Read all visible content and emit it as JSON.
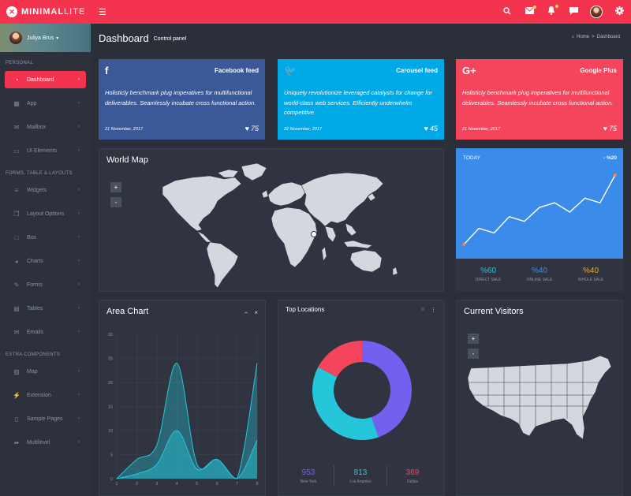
{
  "brand": {
    "bold": "MINIMAL",
    "light": "LITE"
  },
  "user": {
    "name": "Juliya Brus"
  },
  "sidebar": {
    "sections": [
      {
        "title": "PERSONAL",
        "items": [
          {
            "label": "Dashboard",
            "icon": "dashboard-icon",
            "active": true
          },
          {
            "label": "App",
            "icon": "grid-icon"
          },
          {
            "label": "Mailbox",
            "icon": "envelope-icon"
          },
          {
            "label": "UI Elements",
            "icon": "laptop-icon"
          }
        ]
      },
      {
        "title": "FORMS, TABLE & LAYOUTS",
        "items": [
          {
            "label": "Widgets",
            "icon": "list-icon"
          },
          {
            "label": "Layout Options",
            "icon": "copy-icon"
          },
          {
            "label": "Box",
            "icon": "square-icon"
          },
          {
            "label": "Charts",
            "icon": "pie-chart-icon"
          },
          {
            "label": "Forms",
            "icon": "edit-icon"
          },
          {
            "label": "Tables",
            "icon": "table-icon"
          },
          {
            "label": "Emails",
            "icon": "envelope-open-icon"
          }
        ]
      },
      {
        "title": "EXTRA COMPONENTS",
        "items": [
          {
            "label": "Map",
            "icon": "map-icon"
          },
          {
            "label": "Extension",
            "icon": "plug-icon"
          },
          {
            "label": "Sample Pages",
            "icon": "file-icon"
          },
          {
            "label": "Multilevel",
            "icon": "share-icon"
          }
        ]
      }
    ]
  },
  "header": {
    "title": "Dashboard",
    "subtitle": "Control panel",
    "breadcrumb": {
      "home": "Home",
      "current": "Dashboard"
    }
  },
  "social": [
    {
      "title": "Facebook feed",
      "icon": "f",
      "text": "Holisticly benchmark plug imperatives for multifunctional deliverables. Seamlessly incubate cross functional action.",
      "date": "21 November, 2017",
      "likes": "75",
      "color": "#3b5998"
    },
    {
      "title": "Carousel feed",
      "icon": "🐦",
      "text": "Uniquely revolutionize leveraged catalysts for change for world-class web services. Efficiently underwhelm competitive.",
      "date": "22 November, 2017",
      "likes": "45",
      "color": "#00a9e6"
    },
    {
      "title": "Google Plus",
      "icon": "G+",
      "text": "Holisticly benchmark plug imperatives for multifunctional deliverables. Seamlessly incubate cross functional action.",
      "date": "21 November, 2017",
      "likes": "75",
      "color": "#f4455c"
    }
  ],
  "world_map": {
    "title": "World Map",
    "zoom_in": "+",
    "zoom_out": "-"
  },
  "today": {
    "label": "TODAY",
    "value": "- %20",
    "color": "#3b8bea",
    "chart_data": {
      "type": "line",
      "x": [
        1,
        2,
        3,
        4,
        5,
        6,
        7,
        8,
        9,
        10,
        11
      ],
      "values": [
        2,
        9,
        7,
        14,
        12,
        18,
        20,
        16,
        22,
        20,
        32
      ],
      "ylim": [
        0,
        34
      ]
    },
    "stats": [
      {
        "value": "%60",
        "label": "DIRECT SALE",
        "color": "#26c6da"
      },
      {
        "value": "%40",
        "label": "ONLINE SALE",
        "color": "#3b8bea"
      },
      {
        "value": "%40",
        "label": "WHOLE SALE",
        "color": "#f5a623"
      }
    ]
  },
  "area_chart": {
    "title": "Area Chart",
    "minimize": "−",
    "close": "×",
    "chart_data": {
      "type": "area",
      "x": [
        1,
        2,
        3,
        4,
        5,
        6,
        7,
        8
      ],
      "series": [
        {
          "values": [
            0,
            4,
            7,
            24,
            3,
            4,
            0,
            24
          ]
        },
        {
          "values": [
            0,
            1,
            3,
            10,
            2,
            4,
            0,
            8
          ]
        }
      ],
      "ylim": [
        0,
        30
      ],
      "yticks": [
        0,
        5,
        10,
        15,
        20,
        25,
        30
      ],
      "xticks": [
        1,
        2,
        3,
        4,
        5,
        6,
        7,
        8
      ],
      "grid": true
    }
  },
  "top_locations": {
    "title": "Top Locations",
    "chart_data": {
      "type": "pie",
      "labels": [
        "New York",
        "Los Angeles",
        "Dallas"
      ],
      "values": [
        953,
        813,
        369
      ],
      "colors": [
        "#7460ee",
        "#26c6da",
        "#f4455c"
      ]
    },
    "stats": [
      {
        "value": "953",
        "label": "New York",
        "color": "#7460ee"
      },
      {
        "value": "813",
        "label": "Los Angeles",
        "color": "#26c6da"
      },
      {
        "value": "369",
        "label": "Dallas",
        "color": "#f4455c"
      }
    ]
  },
  "visitors": {
    "title": "Current Visitors",
    "zoom_in": "+",
    "zoom_out": "-"
  }
}
